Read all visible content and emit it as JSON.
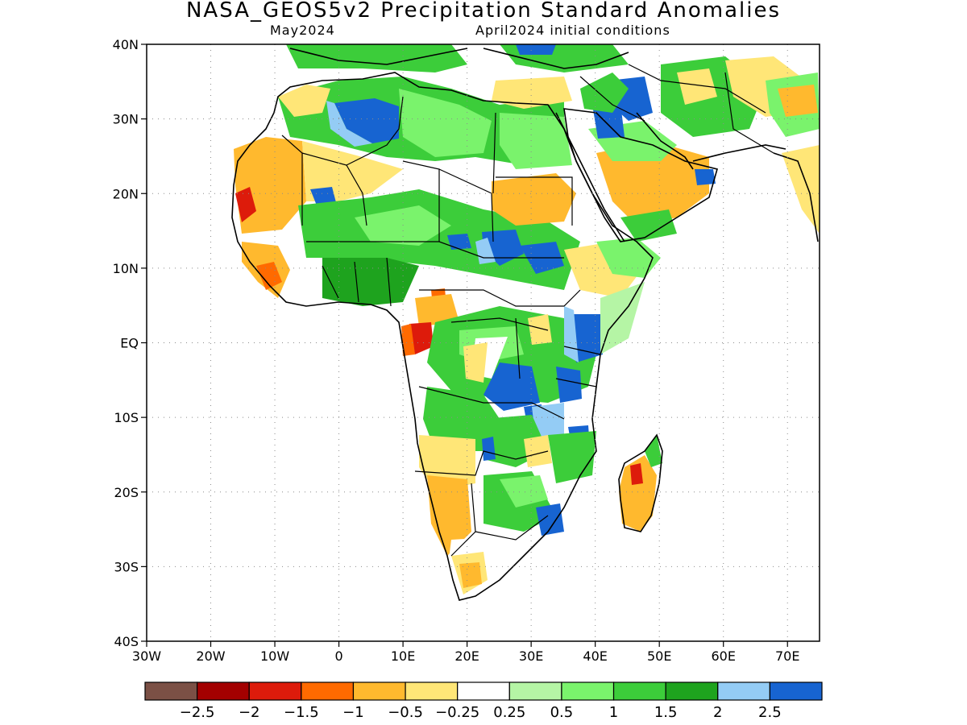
{
  "title": "NASA_GEOS5v2 Precipitation Standard Anomalies",
  "subtitle_left": "May2024",
  "subtitle_right": "April2024 initial conditions",
  "map": {
    "region": "Africa",
    "variable": "Precipitation standard anomaly",
    "lon_range": [
      -30,
      75
    ],
    "lat_range": [
      -40,
      40
    ],
    "lat_ticks": [
      "40N",
      "30N",
      "20N",
      "10N",
      "EQ",
      "10S",
      "20S",
      "30S",
      "40S"
    ],
    "lon_ticks": [
      "30W",
      "20W",
      "10W",
      "0",
      "10E",
      "20E",
      "30E",
      "40E",
      "50E",
      "60E",
      "70E"
    ],
    "grid": "dotted"
  },
  "colorbar": {
    "colors": [
      "#7b5045",
      "#a30000",
      "#dd1b0b",
      "#ff6a00",
      "#ffb92e",
      "#ffe677",
      "#ffffff",
      "#b5f5a5",
      "#7af36c",
      "#3ccd3a",
      "#1ea31e",
      "#94ccf5",
      "#1764d1"
    ],
    "labels": [
      "−2.5",
      "−2",
      "−1.5",
      "−1",
      "−0.5",
      "−0.25",
      "0.25",
      "0.5",
      "1",
      "1.5",
      "2",
      "2.5"
    ]
  },
  "anomaly_patches": [
    {
      "name": "sahara-north-wet",
      "color": "#3ccd3a"
    },
    {
      "name": "algeria-blue",
      "color": "#1764d1"
    },
    {
      "name": "west-africa-dry",
      "color": "#ffb92e"
    },
    {
      "name": "senegal-red",
      "color": "#dd1b0b"
    },
    {
      "name": "sahel-wet",
      "color": "#3ccd3a"
    },
    {
      "name": "sudan-dry",
      "color": "#ffb92e"
    },
    {
      "name": "ethiopia-dry",
      "color": "#ffe677"
    },
    {
      "name": "cameroon-red",
      "color": "#ff6a00"
    },
    {
      "name": "gabon-red",
      "color": "#dd1b0b"
    },
    {
      "name": "congo-wet",
      "color": "#3ccd3a"
    },
    {
      "name": "kenya-blue",
      "color": "#1764d1"
    },
    {
      "name": "tanzania-blue",
      "color": "#1764d1"
    },
    {
      "name": "angola-dry",
      "color": "#ffe677"
    },
    {
      "name": "namibia-dry",
      "color": "#ffb92e"
    },
    {
      "name": "mozambique-blue",
      "color": "#1764d1"
    },
    {
      "name": "madagascar-dry",
      "color": "#ffb92e"
    },
    {
      "name": "arabia-dry",
      "color": "#ffb92e"
    },
    {
      "name": "middle-east-blue",
      "color": "#1764d1"
    },
    {
      "name": "iran-wet",
      "color": "#3ccd3a"
    }
  ]
}
